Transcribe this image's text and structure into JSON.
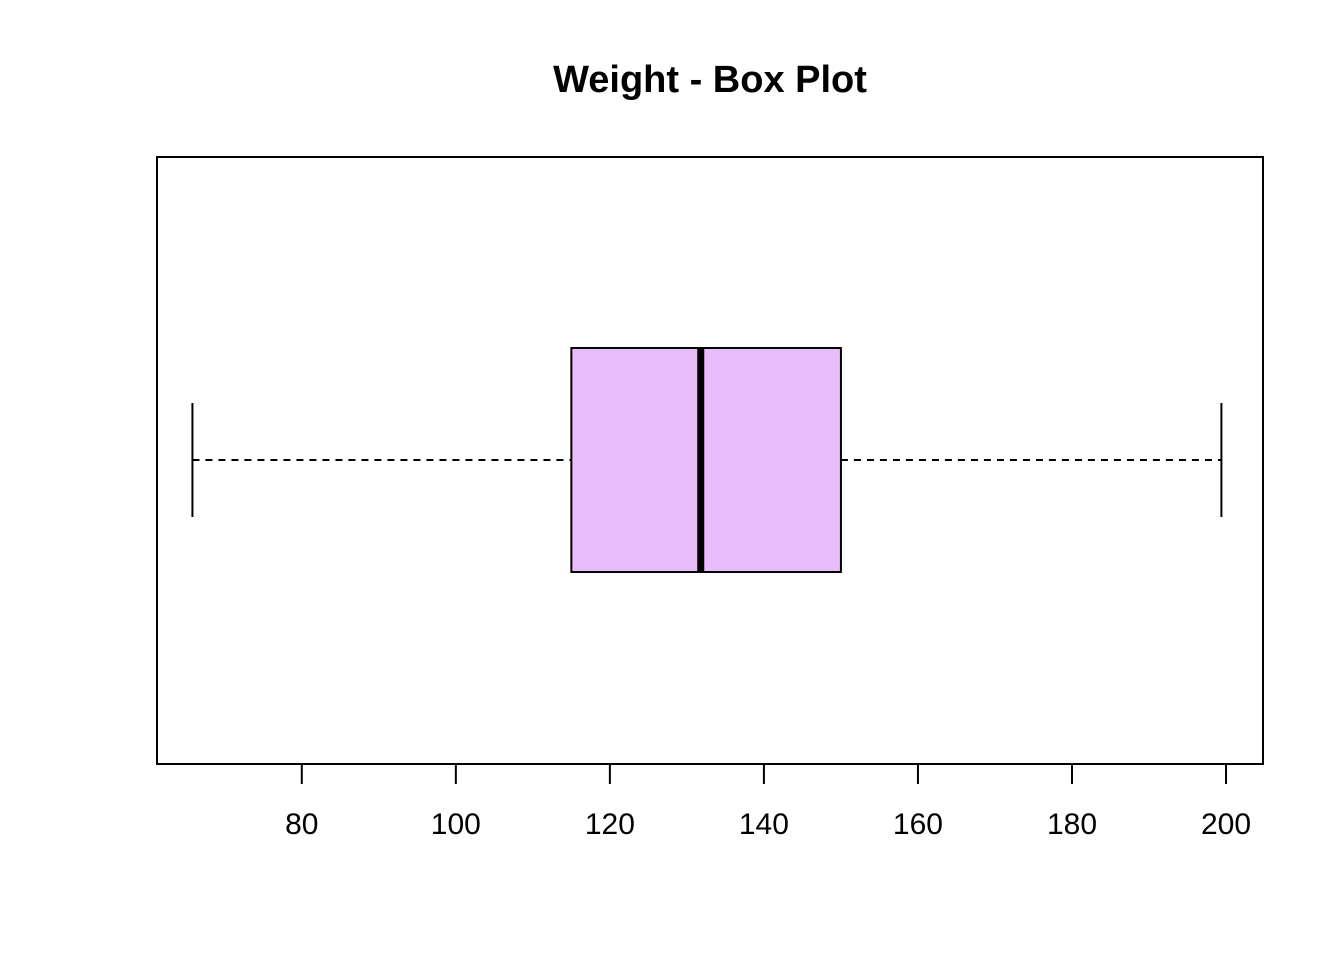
{
  "chart_data": {
    "type": "boxplot",
    "orientation": "horizontal",
    "title": "Weight - Box Plot",
    "xlabel": "",
    "ylabel": "",
    "xlim": [
      61.2,
      204.8
    ],
    "ticks": [
      80,
      100,
      120,
      140,
      160,
      180,
      200
    ],
    "tick_labels": [
      "80",
      "100",
      "120",
      "140",
      "160",
      "180",
      "200"
    ],
    "grid": false,
    "series": [
      {
        "whisker_low": 65.8,
        "q1": 115,
        "median": 131.8,
        "q3": 150,
        "whisker_high": 199.4
      }
    ],
    "colors": {
      "box_fill": "#E8BCFB",
      "line": "#000000"
    }
  }
}
